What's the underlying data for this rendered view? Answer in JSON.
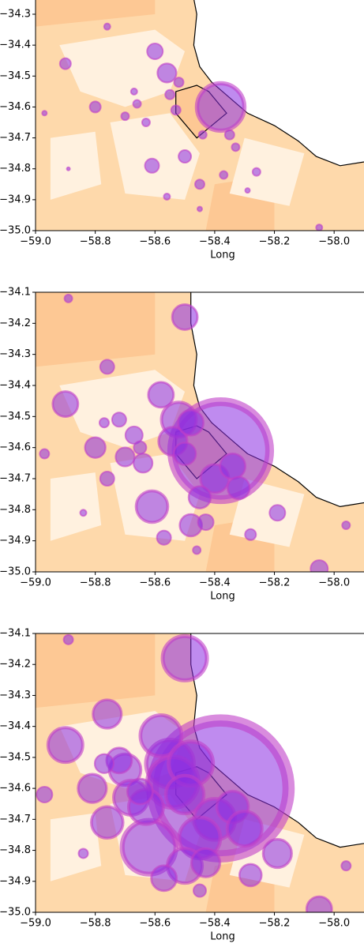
{
  "chart_data": [
    {
      "type": "scatter",
      "xlabel": "Long",
      "color": "#8a2be2",
      "edgecolor": "#c03fc8",
      "xlim": [
        -59.0,
        -57.9
      ],
      "ylim": [
        -35.0,
        -34.254
      ],
      "xticks": [
        {
          "value": -59.0,
          "label": "−59.0"
        },
        {
          "value": -58.8,
          "label": "−58.8"
        },
        {
          "value": -58.6,
          "label": "−58.6"
        },
        {
          "value": -58.4,
          "label": "−58.4"
        },
        {
          "value": -58.2,
          "label": "−58.2"
        },
        {
          "value": -58.0,
          "label": "−58.0"
        }
      ],
      "yticks": [
        {
          "value": -34.3,
          "label": "−34.3"
        },
        {
          "value": -34.4,
          "label": "−34.4"
        },
        {
          "value": -34.5,
          "label": "−34.5"
        },
        {
          "value": -34.6,
          "label": "−34.6"
        },
        {
          "value": -34.7,
          "label": "−34.7"
        },
        {
          "value": -34.8,
          "label": "−34.8"
        },
        {
          "value": -34.9,
          "label": "−34.9"
        },
        {
          "value": -35.0,
          "label": "−35.0"
        }
      ],
      "x": [
        -58.38,
        -58.56,
        -58.6,
        -58.52,
        -58.9,
        -58.8,
        -58.55,
        -58.67,
        -58.7,
        -58.63,
        -58.66,
        -58.53,
        -58.76,
        -58.44,
        -58.35,
        -58.33,
        -58.5,
        -58.61,
        -58.45,
        -58.37,
        -58.26,
        -58.56,
        -58.45,
        -58.29,
        -58.97,
        -58.89,
        -58.05
      ],
      "y": [
        -34.6,
        -34.49,
        -34.42,
        -34.52,
        -34.46,
        -34.6,
        -34.56,
        -34.55,
        -34.63,
        -34.65,
        -34.59,
        -34.61,
        -34.34,
        -34.69,
        -34.69,
        -34.73,
        -34.76,
        -34.79,
        -34.85,
        -34.82,
        -34.81,
        -34.89,
        -34.93,
        -34.87,
        -34.62,
        -34.8,
        -34.99
      ],
      "sizes": [
        30,
        12,
        10,
        6,
        7,
        7,
        6,
        4,
        5,
        5,
        5,
        6,
        4,
        5,
        6,
        5,
        8,
        9,
        6,
        5,
        5,
        4,
        3,
        3,
        3,
        2,
        4
      ]
    },
    {
      "type": "scatter",
      "xlabel": "Long",
      "color": "#8a2be2",
      "edgecolor": "#c03fc8",
      "xlim": [
        -59.0,
        -57.9
      ],
      "ylim": [
        -35.0,
        -34.1
      ],
      "xticks": [
        {
          "value": -59.0,
          "label": "−59.0"
        },
        {
          "value": -58.8,
          "label": "−58.8"
        },
        {
          "value": -58.6,
          "label": "−58.6"
        },
        {
          "value": -58.4,
          "label": "−58.4"
        },
        {
          "value": -58.2,
          "label": "−58.2"
        },
        {
          "value": -58.0,
          "label": "−58.0"
        }
      ],
      "yticks": [
        {
          "value": -34.1,
          "label": "−34.1"
        },
        {
          "value": -34.2,
          "label": "−34.2"
        },
        {
          "value": -34.3,
          "label": "−34.3"
        },
        {
          "value": -34.4,
          "label": "−34.4"
        },
        {
          "value": -34.5,
          "label": "−34.5"
        },
        {
          "value": -34.6,
          "label": "−34.6"
        },
        {
          "value": -34.7,
          "label": "−34.7"
        },
        {
          "value": -34.8,
          "label": "−34.8"
        },
        {
          "value": -34.9,
          "label": "−34.9"
        },
        {
          "value": -35.0,
          "label": "−35.0"
        }
      ],
      "x": [
        -58.38,
        -58.52,
        -58.58,
        -58.54,
        -58.48,
        -58.5,
        -58.4,
        -58.34,
        -58.32,
        -58.45,
        -58.61,
        -58.48,
        -58.43,
        -58.57,
        -58.28,
        -58.19,
        -58.9,
        -58.8,
        -58.67,
        -58.72,
        -58.77,
        -58.76,
        -58.7,
        -58.64,
        -58.65,
        -58.76,
        -58.5,
        -58.97,
        -58.89,
        -58.84,
        -58.46,
        -58.05,
        -57.96
      ],
      "y": [
        -34.61,
        -34.51,
        -34.43,
        -34.58,
        -34.52,
        -34.62,
        -34.7,
        -34.66,
        -34.73,
        -34.76,
        -34.79,
        -34.85,
        -34.84,
        -34.89,
        -34.88,
        -34.81,
        -34.46,
        -34.6,
        -34.56,
        -34.51,
        -34.52,
        -34.34,
        -34.63,
        -34.65,
        -34.6,
        -34.7,
        -34.18,
        -34.62,
        -34.12,
        -34.81,
        -34.93,
        -34.99,
        -34.85
      ],
      "sizes": [
        62,
        22,
        16,
        18,
        16,
        14,
        18,
        16,
        14,
        14,
        20,
        14,
        10,
        9,
        7,
        10,
        16,
        13,
        11,
        9,
        6,
        9,
        12,
        12,
        8,
        9,
        16,
        6,
        5,
        4,
        5,
        11,
        5
      ]
    },
    {
      "type": "scatter",
      "xlabel": "Long",
      "color": "#8a2be2",
      "edgecolor": "#c03fc8",
      "xlim": [
        -59.0,
        -57.9
      ],
      "ylim": [
        -35.0,
        -34.1
      ],
      "xticks": [
        {
          "value": -59.0,
          "label": "−59.0"
        },
        {
          "value": -58.8,
          "label": "−58.8"
        },
        {
          "value": -58.6,
          "label": "−58.6"
        },
        {
          "value": -58.4,
          "label": "−58.4"
        },
        {
          "value": -58.2,
          "label": "−58.2"
        },
        {
          "value": -58.0,
          "label": "−58.0"
        }
      ],
      "yticks": [
        {
          "value": -34.1,
          "label": "−34.1"
        },
        {
          "value": -34.2,
          "label": "−34.2"
        },
        {
          "value": -34.3,
          "label": "−34.3"
        },
        {
          "value": -34.4,
          "label": "−34.4"
        },
        {
          "value": -34.5,
          "label": "−34.5"
        },
        {
          "value": -34.6,
          "label": "−34.6"
        },
        {
          "value": -34.7,
          "label": "−34.7"
        },
        {
          "value": -34.8,
          "label": "−34.8"
        },
        {
          "value": -34.9,
          "label": "−34.9"
        },
        {
          "value": -35.0,
          "label": "−35.0"
        }
      ],
      "x": [
        -58.38,
        -58.55,
        -58.58,
        -58.54,
        -58.48,
        -58.5,
        -58.4,
        -58.34,
        -58.3,
        -58.45,
        -58.62,
        -58.5,
        -58.43,
        -58.57,
        -58.28,
        -58.19,
        -58.9,
        -58.81,
        -58.7,
        -58.72,
        -58.77,
        -58.76,
        -58.68,
        -58.63,
        -58.65,
        -58.76,
        -58.5,
        -58.97,
        -58.89,
        -58.84,
        -58.45,
        -58.05,
        -57.96
      ],
      "y": [
        -34.6,
        -34.52,
        -34.43,
        -34.58,
        -34.52,
        -34.62,
        -34.7,
        -34.66,
        -34.73,
        -34.76,
        -34.79,
        -34.85,
        -34.84,
        -34.89,
        -34.88,
        -34.81,
        -34.46,
        -34.6,
        -34.54,
        -34.51,
        -34.52,
        -34.36,
        -34.63,
        -34.66,
        -34.61,
        -34.71,
        -34.18,
        -34.62,
        -34.12,
        -34.81,
        -34.93,
        -34.99,
        -34.85
      ],
      "sizes": [
        86,
        30,
        26,
        32,
        28,
        24,
        26,
        20,
        22,
        26,
        34,
        22,
        18,
        16,
        14,
        18,
        22,
        18,
        20,
        16,
        12,
        18,
        22,
        22,
        16,
        20,
        28,
        10,
        6,
        6,
        8,
        16,
        6
      ]
    }
  ]
}
